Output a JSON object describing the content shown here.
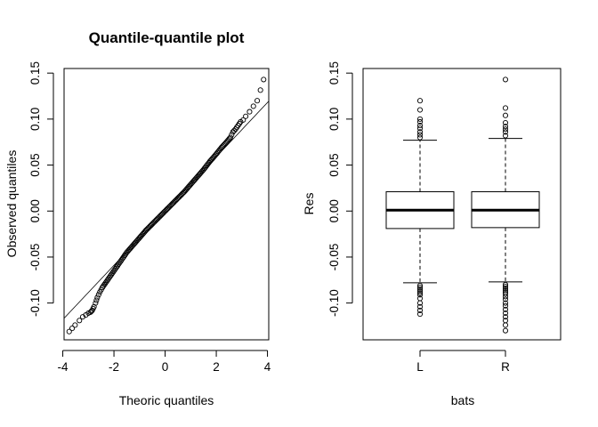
{
  "chart_data": [
    {
      "type": "scatter",
      "title": "Quantile-quantile plot",
      "xlabel": "Theoric quantiles",
      "ylabel": "Observed quantiles",
      "xlim": [
        -3.95,
        4.05
      ],
      "ylim": [
        -0.14,
        0.155
      ],
      "xticks": [
        "-4",
        "-2",
        "0",
        "2",
        "4"
      ],
      "xtick_values": [
        -4,
        -2,
        0,
        2,
        4
      ],
      "yticks": [
        "-0.10",
        "-0.05",
        "0.00",
        "0.05",
        "0.10",
        "0.15"
      ],
      "ytick_values": [
        -0.1,
        -0.05,
        0,
        0.05,
        0.1,
        0.15
      ],
      "reference_line": {
        "intercept": 0.0,
        "slope": 0.0295
      },
      "points": [
        [
          -3.75,
          -0.131
        ],
        [
          -3.52,
          -0.124
        ],
        [
          -3.35,
          -0.119
        ],
        [
          -3.22,
          -0.115
        ],
        [
          -3.1,
          -0.113
        ],
        [
          -3.0,
          -0.111
        ],
        [
          -2.92,
          -0.11
        ],
        [
          -2.85,
          -0.108
        ],
        [
          -2.78,
          -0.104
        ],
        [
          -2.72,
          -0.1
        ],
        [
          -2.65,
          -0.094
        ],
        [
          -2.55,
          -0.088
        ],
        [
          -2.45,
          -0.083
        ],
        [
          -2.3,
          -0.077
        ],
        [
          -2.1,
          -0.069
        ],
        [
          -1.9,
          -0.061
        ],
        [
          -1.7,
          -0.053
        ],
        [
          -1.5,
          -0.045
        ],
        [
          -1.25,
          -0.037
        ],
        [
          -1.0,
          -0.029
        ],
        [
          -0.75,
          -0.021
        ],
        [
          -0.5,
          -0.014
        ],
        [
          -0.25,
          -0.007
        ],
        [
          0.0,
          0.0
        ],
        [
          0.25,
          0.007
        ],
        [
          0.5,
          0.014
        ],
        [
          0.75,
          0.021
        ],
        [
          1.0,
          0.029
        ],
        [
          1.25,
          0.037
        ],
        [
          1.5,
          0.045
        ],
        [
          1.75,
          0.054
        ],
        [
          2.0,
          0.062
        ],
        [
          2.2,
          0.069
        ],
        [
          2.4,
          0.075
        ],
        [
          2.55,
          0.08
        ],
        [
          2.65,
          0.086
        ],
        [
          2.75,
          0.089
        ],
        [
          2.85,
          0.093
        ],
        [
          2.95,
          0.097
        ],
        [
          3.05,
          0.099
        ],
        [
          3.15,
          0.103
        ],
        [
          3.3,
          0.108
        ],
        [
          3.6,
          0.12
        ],
        [
          3.85,
          0.143
        ]
      ]
    },
    {
      "type": "box",
      "title": "",
      "xlabel": "bats",
      "ylabel": "Res",
      "categories": [
        "L",
        "R"
      ],
      "ylim": [
        -0.14,
        0.155
      ],
      "yticks": [
        "-0.10",
        "-0.05",
        "0.00",
        "0.05",
        "0.10",
        "0.15"
      ],
      "ytick_values": [
        -0.1,
        -0.05,
        0,
        0.05,
        0.1,
        0.15
      ],
      "boxes": [
        {
          "category": "L",
          "whisker_low": -0.078,
          "q1": -0.019,
          "median": 0.001,
          "q3": 0.021,
          "whisker_high": 0.077,
          "outliers": [
            0.12,
            0.11,
            0.1,
            0.097,
            0.093,
            0.09,
            0.086,
            0.083,
            0.08,
            -0.081,
            -0.083,
            -0.085,
            -0.087,
            -0.089,
            -0.091,
            -0.095,
            -0.1,
            -0.104,
            -0.108,
            -0.112
          ]
        },
        {
          "category": "R",
          "whisker_low": -0.077,
          "q1": -0.018,
          "median": 0.001,
          "q3": 0.021,
          "whisker_high": 0.079,
          "outliers": [
            0.143,
            0.112,
            0.104,
            0.096,
            0.092,
            0.089,
            0.086,
            0.082,
            -0.08,
            -0.082,
            -0.084,
            -0.086,
            -0.088,
            -0.09,
            -0.093,
            -0.096,
            -0.1,
            -0.103,
            -0.107,
            -0.111,
            -0.115,
            -0.119,
            -0.124,
            -0.13
          ]
        }
      ]
    }
  ]
}
